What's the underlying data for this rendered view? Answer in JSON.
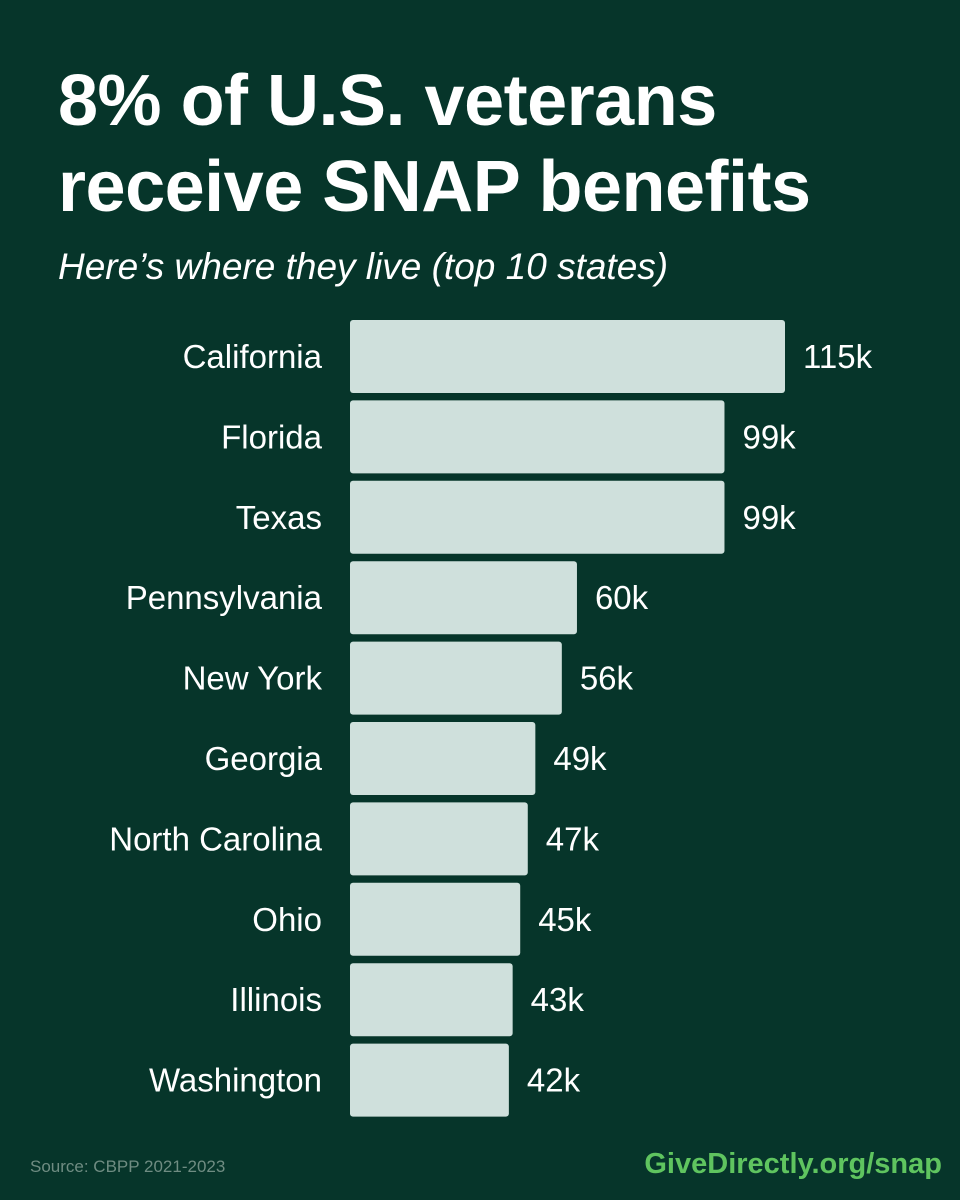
{
  "header": {
    "title_line1": "8% of U.S. veterans",
    "title_line2": "receive SNAP benefits",
    "subtitle": "Here’s where they live (top 10 states)"
  },
  "footer": {
    "source": "Source: CBPP 2021-2023",
    "brand": "GiveDirectly.org/snap"
  },
  "colors": {
    "background": "#06352a",
    "bar": "#cfe0dc",
    "text": "#ffffff",
    "brand": "#5fc45f",
    "source": "#6f8c82"
  },
  "chart_data": {
    "type": "bar",
    "orientation": "horizontal",
    "categories": [
      "California",
      "Florida",
      "Texas",
      "Pennsylvania",
      "New York",
      "Georgia",
      "North Carolina",
      "Ohio",
      "Illinois",
      "Washington"
    ],
    "values": [
      115,
      99,
      99,
      60,
      56,
      49,
      47,
      45,
      43,
      42
    ],
    "value_labels": [
      "115k",
      "99k",
      "99k",
      "60k",
      "56k",
      "49k",
      "47k",
      "45k",
      "43k",
      "42k"
    ],
    "unit": "k",
    "xlim": [
      0,
      115
    ],
    "grid": false,
    "legend": "none"
  }
}
